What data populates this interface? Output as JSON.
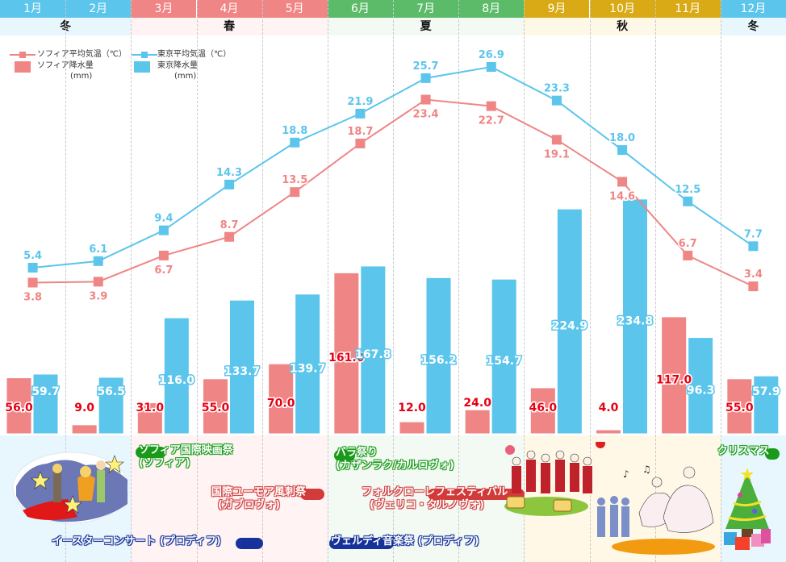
{
  "months": [
    "1月",
    "2月",
    "3月",
    "4月",
    "5月",
    "6月",
    "7月",
    "8月",
    "9月",
    "10月",
    "11月",
    "12月"
  ],
  "seasons": [
    {
      "label": "冬",
      "start": 0,
      "end": 2,
      "color": "#5bc5ec",
      "bg": "#e8f7fd"
    },
    {
      "label": "春",
      "start": 2,
      "end": 5,
      "color": "#f08585",
      "bg": "#fff3f3"
    },
    {
      "label": "夏",
      "start": 5,
      "end": 8,
      "color": "#5bbb68",
      "bg": "#f2faf3"
    },
    {
      "label": "秋",
      "start": 8,
      "end": 11,
      "color": "#d9aa15",
      "bg": "#fff8e6"
    },
    {
      "label": "冬",
      "start": 11,
      "end": 12,
      "color": "#5bc5ec",
      "bg": "#e8f7fd"
    }
  ],
  "legend": {
    "sofia_temp": "ソフィア平均気温（℃）",
    "sofia_precip": "ソフィア降水量",
    "sofia_precip_unit": "(mm)",
    "tokyo_temp": "東京平均気温（℃）",
    "tokyo_precip": "東京降水量",
    "tokyo_precip_unit": "(mm)"
  },
  "colors": {
    "sofia": "#f08585",
    "tokyo": "#5bc5ec",
    "sofia_label": "#e60012"
  },
  "chart_data": {
    "type": "bar+line",
    "categories": [
      "1月",
      "2月",
      "3月",
      "4月",
      "5月",
      "6月",
      "7月",
      "8月",
      "9月",
      "10月",
      "11月",
      "12月"
    ],
    "series": [
      {
        "name": "ソフィア平均気温（℃）",
        "type": "line",
        "values": [
          3.8,
          3.9,
          6.7,
          8.7,
          13.5,
          18.7,
          23.4,
          22.7,
          19.1,
          14.6,
          6.7,
          3.4
        ]
      },
      {
        "name": "東京平均気温（℃）",
        "type": "line",
        "values": [
          5.4,
          6.1,
          9.4,
          14.3,
          18.8,
          21.9,
          25.7,
          26.9,
          23.3,
          18.0,
          12.5,
          7.7
        ]
      },
      {
        "name": "ソフィア降水量 (mm)",
        "type": "bar",
        "values": [
          56.0,
          9.0,
          31.0,
          55.0,
          70.0,
          161.0,
          12.0,
          24.0,
          46.0,
          4.0,
          117.0,
          55.0
        ]
      },
      {
        "name": "東京降水量 (mm)",
        "type": "bar",
        "values": [
          59.7,
          56.5,
          116.0,
          133.7,
          139.7,
          167.8,
          156.2,
          154.7,
          224.9,
          234.8,
          96.3,
          57.9
        ]
      }
    ],
    "title": "",
    "xlabel": "",
    "ylabel": "",
    "grid": "vertical dashed separators between months",
    "legend_position": "top-left"
  },
  "events": [
    {
      "text": "イースターコンサート (プロディフ)",
      "style": "blue"
    },
    {
      "text": "ソフィア国際映画祭",
      "sub": "(ソフィア)",
      "style": "green"
    },
    {
      "text": "国際ユーモア風刺祭",
      "sub": "(ガブロヴォ)",
      "style": "red"
    },
    {
      "text": "バラ祭り",
      "sub": "(カザンラク/カルロヴォ)",
      "style": "green"
    },
    {
      "text": "フォルクローレフェスティバル",
      "sub": "(ヴェリコ・タルノヴォ)",
      "style": "red"
    },
    {
      "text": "ヴェルディ音楽祭 (プロディフ)",
      "style": "blue"
    },
    {
      "text": "クリスマス",
      "style": "green"
    }
  ]
}
